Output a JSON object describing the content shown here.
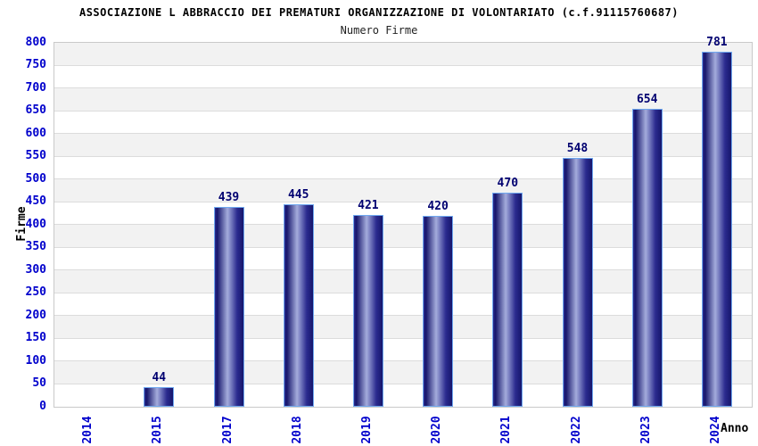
{
  "chart": {
    "title": "ASSOCIAZIONE L ABBRACCIO DEI PREMATURI ORGANIZZAZIONE DI VOLONTARIATO (c.f.91115760687)",
    "subtitle": "Numero Firme",
    "y_axis_title": "Firme",
    "x_axis_title": "Anno"
  },
  "chart_data": {
    "type": "bar",
    "title": "ASSOCIAZIONE L ABBRACCIO DEI PREMATURI ORGANIZZAZIONE DI VOLONTARIATO (c.f.91115760687)",
    "subtitle": "Numero Firme",
    "categories": [
      "2014",
      "2015",
      "2017",
      "2018",
      "2019",
      "2020",
      "2021",
      "2022",
      "2023",
      "2024"
    ],
    "values": [
      0,
      44,
      439,
      445,
      421,
      420,
      470,
      548,
      654,
      781
    ],
    "xlabel": "Anno",
    "ylabel": "Firme",
    "ylim": [
      0,
      800
    ],
    "ytick_step": 50,
    "grid": "horizontal gridlines with alternating gray/white bands every 50 units",
    "legend": "none",
    "bar_value_labels": true
  },
  "colors": {
    "axis_tick_label": "#0000CC",
    "bar_value_label": "#000070",
    "bar_dark": "#16166B",
    "bar_mid": "#2B2B8F",
    "bar_light": "#A4ACDC",
    "bar_border": "#6FA8F0",
    "stripe_gray": "#F2F2F2",
    "gridline": "#DCDCDC",
    "plot_border": "#C9C9C9",
    "title_text": "#000000",
    "subtitle_text": "#222222"
  }
}
